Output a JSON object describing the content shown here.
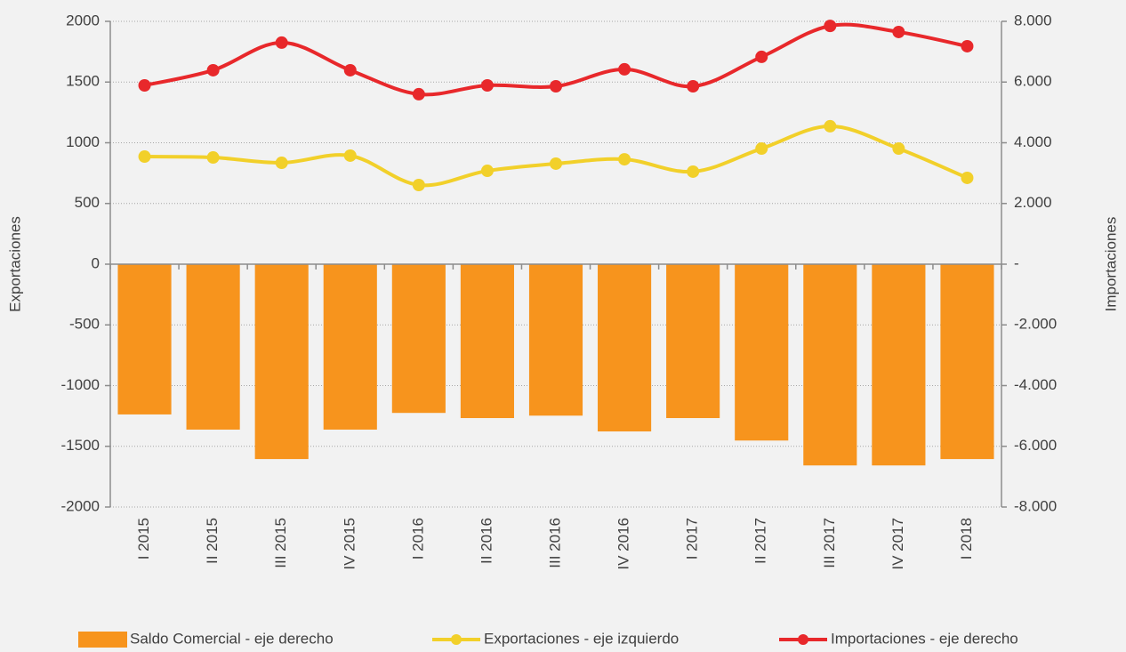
{
  "chart_data": {
    "type": "bar_line",
    "categories": [
      "I 2015",
      "II 2015",
      "III 2015",
      "IV 2015",
      "I 2016",
      "II 2016",
      "III 2016",
      "IV 2016",
      "I 2017",
      "II 2017",
      "III 2017",
      "IV 2017",
      "I 2018"
    ],
    "series": [
      {
        "name": "Saldo Comercial - eje derecho",
        "type": "bar",
        "axis": "y2",
        "color": "#f7941d",
        "values": [
          -4950,
          -5450,
          -6420,
          -5450,
          -4900,
          -5070,
          -4990,
          -5510,
          -5070,
          -5810,
          -6630,
          -6630,
          -6420
        ]
      },
      {
        "name": "Exportaciones - eje izquierdo",
        "type": "line",
        "axis": "y",
        "color": "#f2d02a",
        "values": [
          886,
          879,
          835,
          894,
          652,
          769,
          828,
          864,
          762,
          952,
          1136,
          952,
          711
        ]
      },
      {
        "name": "Importaciones - eje derecho",
        "type": "line",
        "axis": "y2",
        "color": "#e8282b",
        "values": [
          5890,
          6390,
          7300,
          6390,
          5600,
          5890,
          5860,
          6420,
          5860,
          6830,
          7850,
          7650,
          7180
        ]
      }
    ],
    "ylabel": "Exportaciones",
    "y2label": "Importaciones",
    "ylim": [
      -2000,
      2000
    ],
    "yticks": [
      -2000,
      -1500,
      -1000,
      -500,
      0,
      500,
      1000,
      1500,
      2000
    ],
    "y2lim": [
      -8000,
      8000
    ],
    "y2ticks": [
      {
        "value": -8000,
        "label": "-8.000"
      },
      {
        "value": -6000,
        "label": "-6.000"
      },
      {
        "value": -4000,
        "label": "-4.000"
      },
      {
        "value": -2000,
        "label": "-2.000"
      },
      {
        "value": 0,
        "label": "-"
      },
      {
        "value": 2000,
        "label": "2.000"
      },
      {
        "value": 4000,
        "label": "4.000"
      },
      {
        "value": 6000,
        "label": "6.000"
      },
      {
        "value": 8000,
        "label": "8.000"
      }
    ],
    "grid": true,
    "legend": "bottom"
  }
}
